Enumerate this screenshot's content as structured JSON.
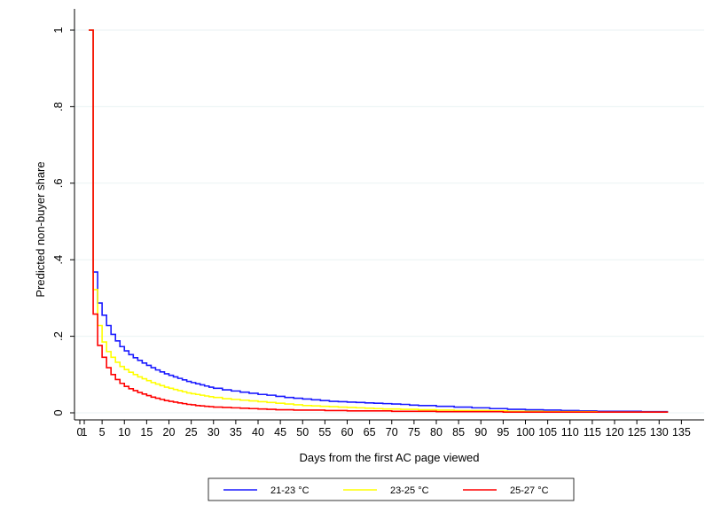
{
  "chart_data": {
    "type": "line",
    "step": true,
    "title": "",
    "xlabel": "Days from the first AC page viewed",
    "ylabel": "Predicted non-buyer share",
    "xlim": [
      0,
      135
    ],
    "ylim": [
      0,
      1
    ],
    "x_ticks": [
      0,
      1,
      5,
      10,
      15,
      20,
      25,
      30,
      35,
      40,
      45,
      50,
      55,
      60,
      65,
      70,
      75,
      80,
      85,
      90,
      95,
      100,
      105,
      110,
      115,
      120,
      125,
      130,
      135
    ],
    "x_tick_labels": [
      "0",
      "1",
      "5",
      "10",
      "15",
      "20",
      "25",
      "30",
      "35",
      "40",
      "45",
      "50",
      "55",
      "60",
      "65",
      "70",
      "75",
      "80",
      "85",
      "90",
      "95",
      "100",
      "105",
      "110",
      "115",
      "120",
      "125",
      "130",
      "135"
    ],
    "y_ticks": [
      0,
      0.2,
      0.4,
      0.6,
      0.8,
      1
    ],
    "y_tick_labels": [
      "0",
      ".2",
      ".4",
      ".6",
      ".8",
      "1"
    ],
    "grid": true,
    "legend_position": "bottom",
    "series": [
      {
        "name": "21-23 °C",
        "color": "#1a1aff",
        "x": [
          2,
          3,
          4,
          5,
          6,
          7,
          8,
          9,
          10,
          11,
          12,
          13,
          14,
          15,
          16,
          17,
          18,
          19,
          20,
          21,
          22,
          23,
          24,
          25,
          26,
          27,
          28,
          29,
          30,
          32,
          34,
          36,
          38,
          40,
          42,
          44,
          46,
          48,
          50,
          52,
          54,
          56,
          58,
          60,
          62,
          64,
          66,
          68,
          70,
          72,
          74,
          76,
          80,
          84,
          88,
          92,
          96,
          100,
          104,
          108,
          112,
          116,
          120,
          126,
          132
        ],
        "y": [
          1.0,
          0.368,
          0.287,
          0.255,
          0.228,
          0.205,
          0.188,
          0.173,
          0.162,
          0.152,
          0.144,
          0.137,
          0.13,
          0.124,
          0.118,
          0.112,
          0.107,
          0.102,
          0.098,
          0.094,
          0.09,
          0.086,
          0.082,
          0.079,
          0.076,
          0.073,
          0.07,
          0.067,
          0.064,
          0.06,
          0.057,
          0.054,
          0.051,
          0.048,
          0.046,
          0.043,
          0.04,
          0.038,
          0.036,
          0.034,
          0.032,
          0.03,
          0.029,
          0.028,
          0.027,
          0.026,
          0.025,
          0.024,
          0.023,
          0.022,
          0.02,
          0.019,
          0.017,
          0.015,
          0.013,
          0.011,
          0.009,
          0.008,
          0.007,
          0.006,
          0.005,
          0.004,
          0.004,
          0.003,
          0.003
        ]
      },
      {
        "name": "23-25 °C",
        "color": "#ffff00",
        "x": [
          2,
          3,
          4,
          5,
          6,
          7,
          8,
          9,
          10,
          11,
          12,
          13,
          14,
          15,
          16,
          17,
          18,
          19,
          20,
          21,
          22,
          23,
          24,
          25,
          26,
          27,
          28,
          29,
          30,
          32,
          34,
          36,
          38,
          40,
          42,
          44,
          46,
          48,
          50,
          52,
          54,
          56,
          58,
          60,
          62,
          64,
          66,
          68,
          70,
          72,
          74,
          76,
          80,
          84,
          88,
          92,
          96,
          100,
          104,
          108,
          112,
          116,
          120,
          126,
          132
        ],
        "y": [
          1.0,
          0.322,
          0.228,
          0.185,
          0.16,
          0.145,
          0.132,
          0.121,
          0.113,
          0.106,
          0.1,
          0.094,
          0.089,
          0.084,
          0.079,
          0.075,
          0.071,
          0.067,
          0.064,
          0.061,
          0.058,
          0.055,
          0.052,
          0.05,
          0.048,
          0.046,
          0.044,
          0.042,
          0.04,
          0.037,
          0.035,
          0.033,
          0.031,
          0.029,
          0.027,
          0.025,
          0.023,
          0.021,
          0.019,
          0.018,
          0.017,
          0.016,
          0.015,
          0.014,
          0.013,
          0.012,
          0.011,
          0.01,
          0.01,
          0.009,
          0.009,
          0.008,
          0.007,
          0.006,
          0.006,
          0.005,
          0.004,
          0.004,
          0.003,
          0.003,
          0.003,
          0.002,
          0.002,
          0.002,
          0.002
        ]
      },
      {
        "name": "25-27 °C",
        "color": "#ff0000",
        "x": [
          2,
          3,
          4,
          5,
          6,
          7,
          8,
          9,
          10,
          11,
          12,
          13,
          14,
          15,
          16,
          17,
          18,
          19,
          20,
          21,
          22,
          23,
          24,
          25,
          26,
          27,
          28,
          29,
          30,
          32,
          34,
          36,
          38,
          40,
          42,
          44,
          46,
          48,
          50,
          55,
          60,
          65,
          70,
          75,
          80,
          85,
          90,
          95,
          100,
          110,
          120,
          132
        ],
        "y": [
          1.0,
          0.258,
          0.176,
          0.145,
          0.118,
          0.1,
          0.087,
          0.077,
          0.069,
          0.063,
          0.058,
          0.053,
          0.049,
          0.045,
          0.041,
          0.038,
          0.035,
          0.032,
          0.03,
          0.028,
          0.026,
          0.024,
          0.022,
          0.021,
          0.019,
          0.018,
          0.017,
          0.016,
          0.015,
          0.014,
          0.013,
          0.012,
          0.011,
          0.01,
          0.009,
          0.008,
          0.008,
          0.007,
          0.007,
          0.006,
          0.005,
          0.005,
          0.004,
          0.004,
          0.003,
          0.003,
          0.003,
          0.002,
          0.002,
          0.002,
          0.002,
          0.002
        ]
      }
    ]
  }
}
